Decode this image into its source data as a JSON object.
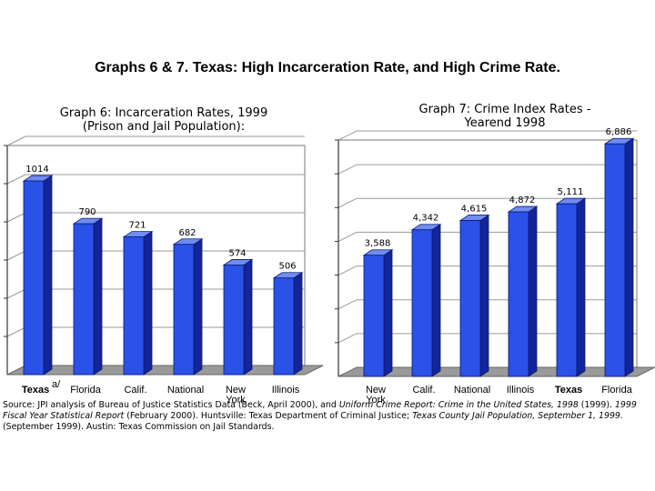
{
  "main_title": "Graphs 6 & 7. Texas: High Incarceration Rate, and High Crime Rate.",
  "colors": {
    "bar_front": "#2a52e8",
    "bar_side": "#14249a",
    "bar_top": "#6f8cf2",
    "floor": "#9a9a9a",
    "wall": "#ffffff"
  },
  "chart_data": [
    {
      "type": "bar",
      "title": "Graph 6:  Incarceration Rates, 1999\n(Prison and Jail Population):",
      "categories": [
        "Texas",
        "Florida",
        "Calif.",
        "National",
        "New York",
        "Illinois"
      ],
      "category_footnote": "a/",
      "values": [
        1014,
        790,
        721,
        682,
        574,
        506
      ],
      "value_labels": [
        "1014",
        "790",
        "721",
        "682",
        "574",
        "506"
      ],
      "bold_category": "Texas",
      "ylim": [
        0,
        1200
      ],
      "grid": true
    },
    {
      "type": "bar",
      "title": "Graph 7:  Crime Index Rates -\nYearend 1998",
      "categories": [
        "New York",
        "Calif.",
        "National",
        "Illinois",
        "Texas",
        "Florida"
      ],
      "values": [
        3588,
        4342,
        4615,
        4872,
        5111,
        6886
      ],
      "value_labels": [
        "3,588",
        "4,342",
        "4,615",
        "4,872",
        "5,111",
        "6,886"
      ],
      "bold_category": "Texas",
      "ylim": [
        0,
        7000
      ],
      "grid": true
    }
  ],
  "source": {
    "p1": "Source: JPI analysis of Bureau of Justice Statistics Data (Beck, April 2000), and ",
    "i1": "Uniform Crime Report: Crime in the United States, 1998",
    "p2": " (1999). ",
    "i2": "1999 Fiscal Year Statistical Report",
    "p3": " (February 2000). Huntsville: Texas Department of Criminal Justice; ",
    "i3": "Texas County Jail Population, September 1, 1999.",
    "p4": " (September 1999). Austin: Texas Commission on Jail Standards."
  }
}
